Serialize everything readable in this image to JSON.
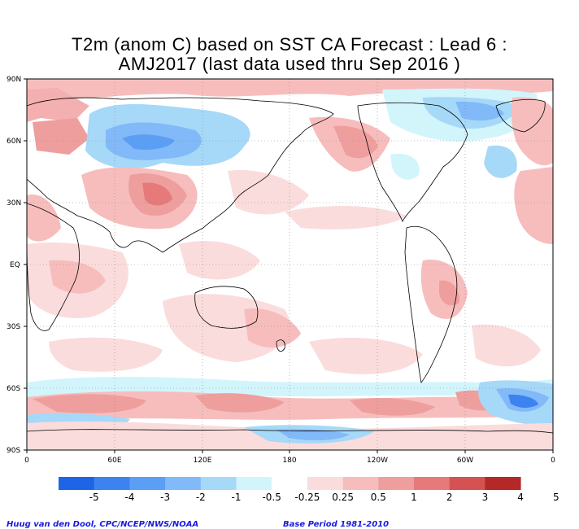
{
  "title_line1": "T2m (anom C) based on SST CA Forecast : Lead 6 :",
  "title_line2": "AMJ2017 (last data used thru Sep 2016 )",
  "lat_labels": [
    "90N",
    "60N",
    "30N",
    "EQ",
    "30S",
    "60S",
    "90S"
  ],
  "lon_labels": [
    "0",
    "60E",
    "120E",
    "180",
    "120W",
    "60W",
    "0"
  ],
  "color_key": {
    "swatches": [
      "#1e64e6",
      "#3c82f0",
      "#5a9ff5",
      "#82b9f8",
      "#a6d8f8",
      "#d2f5fc",
      "#ffffff",
      "#fbdcdc",
      "#f7bdbd",
      "#ef9e9e",
      "#e67a7a",
      "#d65252",
      "#b42828"
    ],
    "labels": [
      "-5",
      "-4",
      "-3",
      "-2",
      "-1",
      "-0.5",
      "-0.25",
      "0.25",
      "0.5",
      "1",
      "2",
      "3",
      "4",
      "5"
    ]
  },
  "credit_left": "Huug van den Dool, CPC/NCEP/NWS/NOAA",
  "credit_right": "Base Period 1981-2010"
}
